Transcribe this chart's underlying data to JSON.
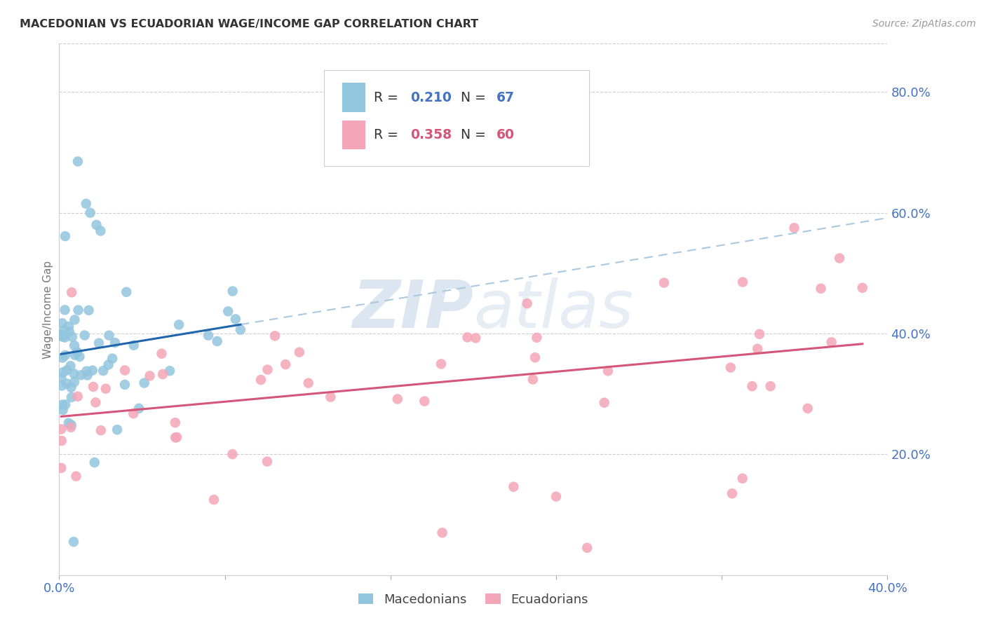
{
  "title": "MACEDONIAN VS ECUADORIAN WAGE/INCOME GAP CORRELATION CHART",
  "source": "Source: ZipAtlas.com",
  "ylabel": "Wage/Income Gap",
  "x_min": 0.0,
  "x_max": 0.4,
  "y_min": 0.0,
  "y_max": 0.88,
  "y_ticks": [
    0.2,
    0.4,
    0.6,
    0.8
  ],
  "y_tick_labels": [
    "20.0%",
    "40.0%",
    "60.0%",
    "80.0%"
  ],
  "macedonians_R": 0.21,
  "macedonians_N": 67,
  "ecuadorians_R": 0.358,
  "ecuadorians_N": 60,
  "macedonian_color": "#92c5de",
  "ecuadorian_color": "#f4a6b8",
  "macedonian_line_color": "#2166ac",
  "ecuadorian_line_color": "#d6557a",
  "macedonian_dash_color": "#aac8de",
  "tick_color": "#4472c4",
  "grid_color": "#cccccc",
  "watermark_color": "#dce6f1",
  "legend_edge_color": "#cccccc",
  "legend_text_color": "#333333",
  "legend_value_color": "#4472c4"
}
